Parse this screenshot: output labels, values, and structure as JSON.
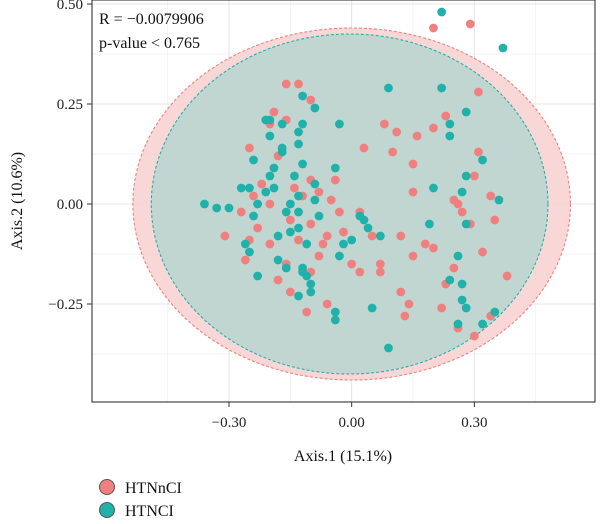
{
  "chart_data": {
    "type": "scatter",
    "title": "",
    "xlabel": "Axis.1 (15.1%)",
    "ylabel": "Axis.2 (10.6%)",
    "xlim": [
      -0.635,
      0.595
    ],
    "ylim": [
      -0.495,
      0.51
    ],
    "x_ticks": [
      -0.3,
      0.0,
      0.3
    ],
    "x_tick_labels": [
      "−0.30",
      "0.00",
      "0.30"
    ],
    "y_ticks": [
      -0.25,
      0.0,
      0.25,
      0.5
    ],
    "y_tick_labels": [
      "−0.25",
      "0.00",
      "0.25",
      "0.50"
    ],
    "grid": true,
    "legend_position": "bottom-left",
    "annotations": [
      "R = −0.0079906",
      "p-value < 0.765"
    ],
    "series": [
      {
        "name": "HTNnCI",
        "color": "#f08080",
        "ellipse": {
          "cx": 0.0,
          "cy": 0.0,
          "rx": 0.535,
          "ry": 0.44,
          "fill": "#f8d3d3"
        },
        "points": [
          [
            0.2,
            0.44
          ],
          [
            0.29,
            0.45
          ],
          [
            -0.16,
            0.3
          ],
          [
            -0.13,
            0.3
          ],
          [
            0.31,
            0.28
          ],
          [
            -0.19,
            0.23
          ],
          [
            -0.2,
            0.2
          ],
          [
            -0.16,
            0.21
          ],
          [
            -0.25,
            0.14
          ],
          [
            -0.1,
            0.26
          ],
          [
            0.08,
            0.2
          ],
          [
            0.11,
            0.18
          ],
          [
            0.2,
            0.19
          ],
          [
            0.23,
            0.22
          ],
          [
            0.16,
            0.17
          ],
          [
            0.31,
            0.13
          ],
          [
            0.03,
            0.14
          ],
          [
            0.1,
            0.13
          ],
          [
            0.3,
            0.07
          ],
          [
            -0.18,
            0.12
          ],
          [
            -0.22,
            0.05
          ],
          [
            -0.14,
            0.04
          ],
          [
            -0.1,
            0.06
          ],
          [
            -0.04,
            0.06
          ],
          [
            0.15,
            0.1
          ],
          [
            -0.24,
            0.02
          ],
          [
            -0.2,
            0.0
          ],
          [
            -0.12,
            0.02
          ],
          [
            -0.08,
            0.03
          ],
          [
            -0.05,
            0.01
          ],
          [
            0.15,
            0.03
          ],
          [
            0.25,
            0.01
          ],
          [
            0.26,
            0.0
          ],
          [
            0.34,
            0.02
          ],
          [
            -0.27,
            -0.02
          ],
          [
            -0.23,
            -0.06
          ],
          [
            -0.15,
            -0.04
          ],
          [
            -0.1,
            -0.05
          ],
          [
            -0.03,
            -0.02
          ],
          [
            0.02,
            -0.02
          ],
          [
            0.27,
            -0.02
          ],
          [
            0.35,
            -0.04
          ],
          [
            -0.31,
            -0.08
          ],
          [
            -0.25,
            -0.09
          ],
          [
            -0.2,
            -0.1
          ],
          [
            -0.13,
            -0.09
          ],
          [
            -0.06,
            -0.08
          ],
          [
            -0.02,
            -0.07
          ],
          [
            0.12,
            -0.08
          ],
          [
            0.18,
            -0.1
          ],
          [
            0.29,
            -0.05
          ],
          [
            -0.26,
            -0.14
          ],
          [
            -0.16,
            -0.15
          ],
          [
            -0.08,
            -0.13
          ],
          [
            0.0,
            -0.15
          ],
          [
            0.07,
            -0.15
          ],
          [
            0.15,
            -0.13
          ],
          [
            0.2,
            -0.11
          ],
          [
            0.25,
            -0.16
          ],
          [
            0.32,
            -0.12
          ],
          [
            -0.18,
            -0.19
          ],
          [
            -0.1,
            -0.17
          ],
          [
            0.02,
            -0.17
          ],
          [
            0.07,
            -0.17
          ],
          [
            0.12,
            -0.22
          ],
          [
            0.23,
            -0.2
          ],
          [
            0.38,
            -0.18
          ],
          [
            -0.06,
            -0.25
          ],
          [
            0.14,
            -0.25
          ],
          [
            0.22,
            -0.26
          ],
          [
            0.13,
            -0.28
          ],
          [
            0.34,
            -0.28
          ],
          [
            0.3,
            -0.33
          ],
          [
            0.26,
            -0.31
          ],
          [
            -0.11,
            -0.27
          ],
          [
            -0.15,
            -0.22
          ],
          [
            0.05,
            -0.08
          ],
          [
            -0.07,
            -0.1
          ]
        ]
      },
      {
        "name": "HTNCI",
        "color": "#20b2aa",
        "ellipse": {
          "cx": -0.005,
          "cy": 0.0,
          "rx": 0.485,
          "ry": 0.425,
          "fill": "#b8d6d0"
        },
        "points": [
          [
            0.22,
            0.48
          ],
          [
            0.37,
            0.39
          ],
          [
            0.22,
            0.29
          ],
          [
            0.09,
            0.29
          ],
          [
            -0.12,
            0.27
          ],
          [
            -0.09,
            0.24
          ],
          [
            -0.2,
            0.21
          ],
          [
            -0.21,
            0.21
          ],
          [
            -0.12,
            0.2
          ],
          [
            -0.17,
            0.2
          ],
          [
            -0.2,
            0.17
          ],
          [
            -0.03,
            0.2
          ],
          [
            0.28,
            0.23
          ],
          [
            0.24,
            0.2
          ],
          [
            -0.13,
            0.18
          ],
          [
            0.24,
            0.17
          ],
          [
            -0.17,
            0.13
          ],
          [
            -0.13,
            0.15
          ],
          [
            -0.17,
            0.14
          ],
          [
            -0.24,
            0.11
          ],
          [
            0.32,
            0.11
          ],
          [
            0.28,
            0.07
          ],
          [
            -0.19,
            0.09
          ],
          [
            -0.12,
            0.1
          ],
          [
            -0.2,
            0.07
          ],
          [
            -0.04,
            0.09
          ],
          [
            -0.14,
            0.07
          ],
          [
            -0.09,
            0.05
          ],
          [
            -0.13,
            0.02
          ],
          [
            -0.21,
            0.03
          ],
          [
            -0.25,
            0.04
          ],
          [
            -0.27,
            0.04
          ],
          [
            -0.19,
            0.04
          ],
          [
            -0.15,
            0.0
          ],
          [
            -0.16,
            -0.02
          ],
          [
            -0.13,
            -0.02
          ],
          [
            -0.09,
            0.01
          ],
          [
            0.2,
            0.04
          ],
          [
            0.27,
            0.03
          ],
          [
            0.36,
            0.01
          ],
          [
            -0.36,
            0.0
          ],
          [
            -0.33,
            -0.01
          ],
          [
            -0.3,
            -0.01
          ],
          [
            -0.23,
            0.0
          ],
          [
            -0.24,
            -0.03
          ],
          [
            -0.13,
            -0.06
          ],
          [
            0.02,
            -0.03
          ],
          [
            -0.15,
            -0.07
          ],
          [
            -0.08,
            -0.03
          ],
          [
            0.03,
            -0.04
          ],
          [
            0.07,
            -0.08
          ],
          [
            0.19,
            -0.05
          ],
          [
            0.28,
            -0.05
          ],
          [
            -0.26,
            -0.1
          ],
          [
            -0.18,
            -0.08
          ],
          [
            -0.11,
            -0.1
          ],
          [
            0.04,
            -0.06
          ],
          [
            -0.02,
            -0.1
          ],
          [
            0.0,
            -0.09
          ],
          [
            -0.25,
            -0.12
          ],
          [
            -0.18,
            -0.14
          ],
          [
            -0.16,
            -0.16
          ],
          [
            -0.12,
            -0.16
          ],
          [
            -0.03,
            -0.13
          ],
          [
            0.26,
            -0.13
          ],
          [
            -0.12,
            -0.17
          ],
          [
            -0.23,
            -0.18
          ],
          [
            -0.11,
            -0.18
          ],
          [
            -0.1,
            -0.2
          ],
          [
            0.24,
            -0.19
          ],
          [
            0.27,
            -0.2
          ],
          [
            -0.1,
            -0.22
          ],
          [
            -0.13,
            -0.23
          ],
          [
            0.27,
            -0.24
          ],
          [
            0.05,
            -0.26
          ],
          [
            0.28,
            -0.26
          ],
          [
            -0.04,
            -0.27
          ],
          [
            0.35,
            -0.27
          ],
          [
            0.26,
            -0.3
          ],
          [
            0.32,
            -0.3
          ],
          [
            0.09,
            -0.36
          ],
          [
            -0.04,
            -0.29
          ]
        ]
      }
    ]
  }
}
